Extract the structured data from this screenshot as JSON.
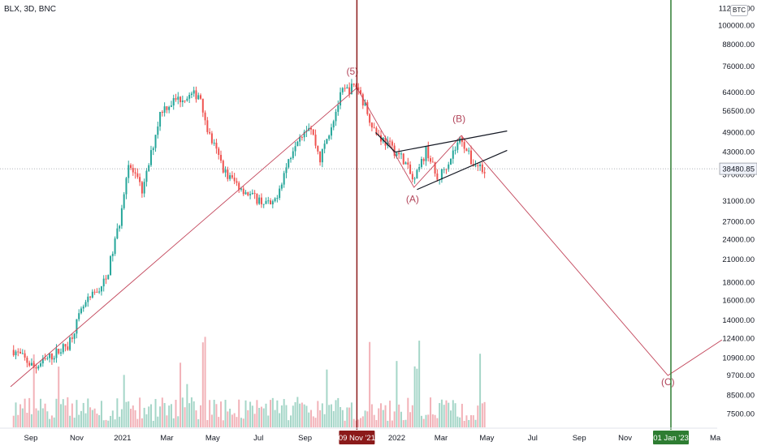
{
  "header": {
    "symbol": "BLX, 3D, BNC"
  },
  "currency_badge": "BTC",
  "price_tag": "38480.85",
  "time_markers": {
    "vertical_line_date": "09 Nov '21",
    "target_date": "01 Jan '23"
  },
  "colors": {
    "background": "#ffffff",
    "up_candle": "#26a69a",
    "down_candle": "#ef5350",
    "volume_up": "#a5d6c8",
    "volume_down": "#f2b2b8",
    "wave_line": "#c2455a",
    "vertical_marker": "#8b1a1a",
    "target_marker": "#2e7d32",
    "trendlines": "#131722"
  },
  "chart_data": {
    "type": "candlestick",
    "scale": "log",
    "y_axis_ticks": [
      "112000.00",
      "100000.00",
      "88000.00",
      "76000.00",
      "64000.00",
      "56500.00",
      "49000.00",
      "43000.00",
      "37000.00",
      "31000.00",
      "27000.00",
      "24000.00",
      "21000.00",
      "18000.00",
      "16000.00",
      "14000.00",
      "12400.00",
      "10900.00",
      "9700.00",
      "8500.00",
      "7500.00"
    ],
    "x_axis_ticks": [
      "Sep",
      "Nov",
      "2021",
      "Mar",
      "May",
      "Jul",
      "Sep",
      "09 Nov '21",
      "2022",
      "Mar",
      "May",
      "Jul",
      "Sep",
      "Nov",
      "01 Jan '23",
      "Ma"
    ],
    "last_price": 38480.85,
    "price_anchors": [
      {
        "date": "2020-08-09",
        "price": 11500
      },
      {
        "date": "2020-09-06",
        "price": 10200
      },
      {
        "date": "2020-10-20",
        "price": 11900
      },
      {
        "date": "2020-11-10",
        "price": 15300
      },
      {
        "date": "2020-12-10",
        "price": 18300
      },
      {
        "date": "2020-12-28",
        "price": 27000
      },
      {
        "date": "2021-01-08",
        "price": 40000
      },
      {
        "date": "2021-01-28",
        "price": 33000
      },
      {
        "date": "2021-02-21",
        "price": 57000
      },
      {
        "date": "2021-03-13",
        "price": 61000
      },
      {
        "date": "2021-04-14",
        "price": 63500
      },
      {
        "date": "2021-04-25",
        "price": 49000
      },
      {
        "date": "2021-05-19",
        "price": 37000
      },
      {
        "date": "2021-06-22",
        "price": 32000
      },
      {
        "date": "2021-07-20",
        "price": 30000
      },
      {
        "date": "2021-08-20",
        "price": 47000
      },
      {
        "date": "2021-09-07",
        "price": 52000
      },
      {
        "date": "2021-09-21",
        "price": 41000
      },
      {
        "date": "2021-10-20",
        "price": 64000
      },
      {
        "date": "2021-11-09",
        "price": 67000
      },
      {
        "date": "2021-12-04",
        "price": 49000
      },
      {
        "date": "2022-01-10",
        "price": 41000
      },
      {
        "date": "2022-01-24",
        "price": 35000
      },
      {
        "date": "2022-02-10",
        "price": 44000
      },
      {
        "date": "2022-02-24",
        "price": 35500
      },
      {
        "date": "2022-03-28",
        "price": 47500
      },
      {
        "date": "2022-04-11",
        "price": 40000
      },
      {
        "date": "2022-04-30",
        "price": 38480
      }
    ],
    "elliott_wave_path": [
      {
        "date": "2020-08-05",
        "price": 9000
      },
      {
        "date": "2021-11-09",
        "price": 66000
      },
      {
        "date": "2022-01-24",
        "price": 34000
      },
      {
        "date": "2022-03-28",
        "price": 48000
      },
      {
        "date": "2022-12-28",
        "price": 9700
      },
      {
        "date": "2023-03-10",
        "price": 12300
      }
    ],
    "wave_labels": [
      {
        "label": "(5)",
        "date": "2021-11-03",
        "price": 72000
      },
      {
        "label": "(A)",
        "date": "2022-01-22",
        "price": 30800
      },
      {
        "label": "(B)",
        "date": "2022-03-25",
        "price": 52500
      },
      {
        "label": "(C)",
        "date": "2022-12-28",
        "price": 9100
      }
    ],
    "triangle_lines": [
      [
        {
          "date": "2021-12-30",
          "price": 43000
        },
        {
          "date": "2022-05-28",
          "price": 49500
        }
      ],
      [
        {
          "date": "2022-01-28",
          "price": 33500
        },
        {
          "date": "2022-05-28",
          "price": 43500
        }
      ],
      [
        {
          "date": "2021-12-04",
          "price": 49000
        },
        {
          "date": "2021-12-30",
          "price": 43000
        }
      ]
    ]
  }
}
